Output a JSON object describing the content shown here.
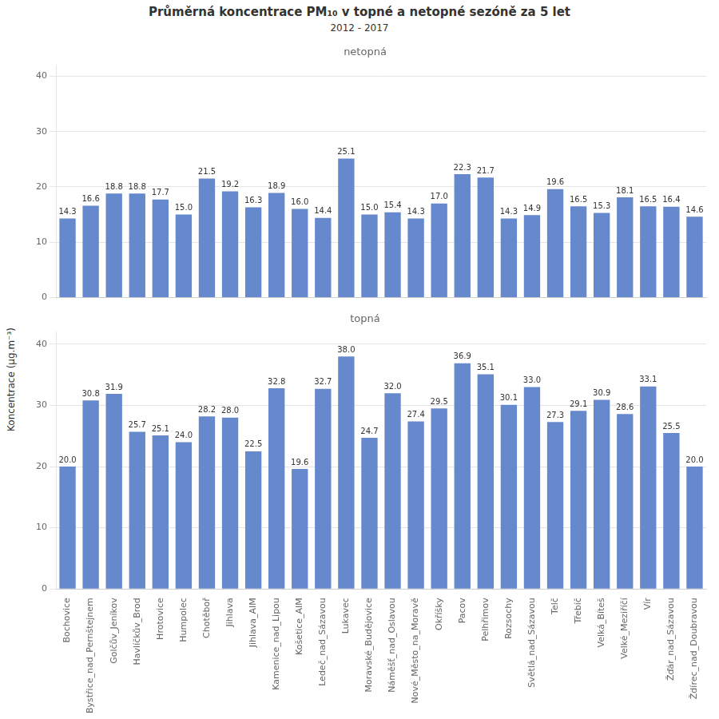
{
  "title": "Průměrná koncentrace PM₁₀ v topné a netopné sezóně za 5 let",
  "subtitle": "2012 - 2017",
  "ylabel": "Koncentrace  (μg.m⁻³)",
  "chart_data": [
    {
      "type": "bar",
      "title": "netopná",
      "categories": [
        "Bochovice",
        "Bystřice_nad_Pernštejnem",
        "Golčův_Jeníkov",
        "Havlíčkův_Brod",
        "Hrotovice",
        "Humpolec",
        "Chotěboř",
        "Jihlava",
        "Jihlava_AIM",
        "Kamenice_nad_Lipou",
        "Košetice_AIM",
        "Ledeč_nad_Sázavou",
        "Lukavec",
        "Moravské_Budějovice",
        "Náměšť_nad_Oslavou",
        "Nové_Město_na_Moravě",
        "Okříšky",
        "Pacov",
        "Pelhřimov",
        "Rozsochy",
        "Světlá_nad_Sázavou",
        "Telč",
        "Třebíč",
        "Velká_Bíteš",
        "Velké_Meziříčí",
        "Vír",
        "Žďár_nad_Sázavou",
        "Ždírec_nad_Doubravou"
      ],
      "values": [
        14.3,
        16.6,
        18.8,
        18.8,
        17.7,
        15.0,
        21.5,
        19.2,
        16.3,
        18.9,
        16.0,
        14.4,
        25.1,
        15.0,
        15.4,
        14.3,
        17.0,
        22.3,
        21.7,
        14.3,
        14.9,
        19.6,
        16.5,
        15.3,
        18.1,
        16.5,
        16.4,
        14.6
      ],
      "value_labels": [
        "14.3",
        "16.6",
        "18.8",
        "18.8",
        "17.7",
        "15.0",
        "21.5",
        "19.2",
        "16.3",
        "18.9",
        "16.0",
        "14.4",
        "25.1",
        "15.0",
        "15.4",
        "14.3",
        "17.0",
        "22.3",
        "21.7",
        "14.3",
        "14.9",
        "19.6",
        "16.5",
        "15.3",
        "18.1",
        "16.5",
        "16.4",
        "14.6"
      ],
      "color": "#6688CC",
      "ylim": [
        0,
        42
      ],
      "yticks": [
        0,
        10,
        20,
        30,
        40
      ],
      "grid": true,
      "data_labels": true,
      "tick_labels": "y"
    },
    {
      "type": "bar",
      "title": "topná",
      "categories": [
        "Bochovice",
        "Bystřice_nad_Pernštejnem",
        "Golčův_Jeníkov",
        "Havlíčkův_Brod",
        "Hrotovice",
        "Humpolec",
        "Chotěboř",
        "Jihlava",
        "Jihlava_AIM",
        "Kamenice_nad_Lipou",
        "Košetice_AIM",
        "Ledeč_nad_Sázavou",
        "Lukavec",
        "Moravské_Budějovice",
        "Náměšť_nad_Oslavou",
        "Nové_Město_na_Moravě",
        "Okříšky",
        "Pacov",
        "Pelhřimov",
        "Rozsochy",
        "Světlá_nad_Sázavou",
        "Telč",
        "Třebíč",
        "Velká_Bíteš",
        "Velké_Meziříčí",
        "Vír",
        "Žďár_nad_Sázavou",
        "Ždírec_nad_Doubravou"
      ],
      "values": [
        20.0,
        30.8,
        31.9,
        25.7,
        25.1,
        24.0,
        28.2,
        28.0,
        22.5,
        32.8,
        19.6,
        32.7,
        38.0,
        24.7,
        32.0,
        27.4,
        29.5,
        36.9,
        35.1,
        30.1,
        33.0,
        27.3,
        29.1,
        30.9,
        28.6,
        33.1,
        25.5,
        20.0
      ],
      "value_labels": [
        "20.0",
        "30.8",
        "31.9",
        "25.7",
        "25.1",
        "24.0",
        "28.2",
        "28.0",
        "22.5",
        "32.8",
        "19.6",
        "32.7",
        "38.0",
        "24.7",
        "32.0",
        "27.4",
        "29.5",
        "36.9",
        "35.1",
        "30.1",
        "33.0",
        "27.3",
        "29.1",
        "30.9",
        "28.6",
        "33.1",
        "25.5",
        "20.0"
      ],
      "color": "#6688CC",
      "ylim": [
        0,
        42
      ],
      "yticks": [
        0,
        10,
        20,
        30,
        40
      ],
      "grid": true,
      "data_labels": true
    }
  ]
}
